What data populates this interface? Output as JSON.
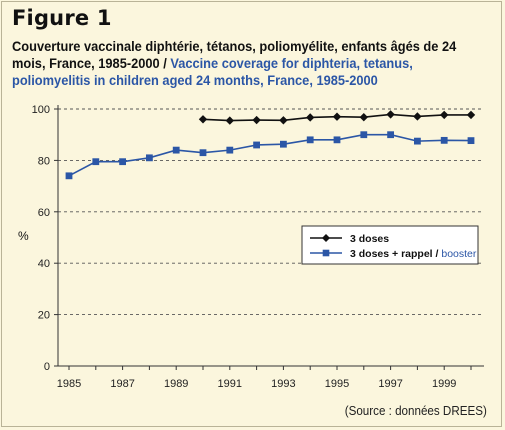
{
  "figure_label": "Figure 1",
  "title_fr": "Couverture vaccinale diphtérie, tétanos, poliomyélite,  enfants âgés de 24 mois, France, 1985-2000",
  "title_separator": " / ",
  "title_en": "Vaccine coverage for diphteria, tetanus, poliomyelitis in children aged 24 months, France, 1985-2000",
  "source": "(Source : données DREES)",
  "colors": {
    "background": "#fbf6dd",
    "series_3_doses": "#111111",
    "series_booster": "#2b56a6",
    "english_text": "#2b56a6"
  },
  "chart_data": {
    "type": "line",
    "ylabel": "%",
    "xlabel": "",
    "xlim": [
      1985,
      2000
    ],
    "ylim": [
      0,
      100
    ],
    "x_ticks": [
      1985,
      1987,
      1989,
      1991,
      1993,
      1995,
      1997,
      1999
    ],
    "y_ticks": [
      0,
      20,
      40,
      60,
      80,
      100
    ],
    "grid": "horizontal-dashed",
    "legend_position": "right",
    "series": [
      {
        "name": "3 doses",
        "marker": "diamond",
        "color": "#111111",
        "x": [
          1990,
          1991,
          1992,
          1993,
          1994,
          1995,
          1996,
          1997,
          1998,
          1999,
          2000
        ],
        "y": [
          96,
          95.5,
          95.7,
          95.6,
          96.7,
          97,
          96.8,
          97.9,
          97.1,
          97.7,
          97.7
        ]
      },
      {
        "name_parts": [
          "3 doses + rappel",
          " / ",
          "booster"
        ],
        "marker": "square",
        "color": "#2b56a6",
        "x": [
          1985,
          1986,
          1987,
          1988,
          1989,
          1990,
          1991,
          1992,
          1993,
          1994,
          1995,
          1996,
          1997,
          1998,
          1999,
          2000
        ],
        "y": [
          74,
          79.5,
          79.5,
          81,
          84,
          83,
          84,
          86,
          86.3,
          88,
          88,
          90,
          90,
          87.5,
          87.8,
          87.7
        ]
      }
    ]
  }
}
